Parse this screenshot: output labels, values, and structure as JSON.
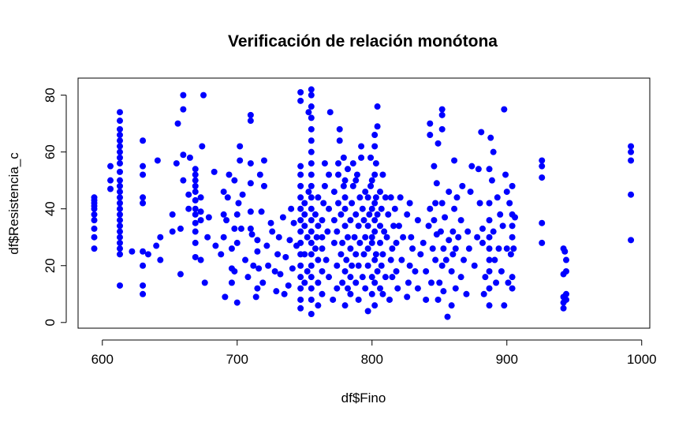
{
  "chart_data": {
    "type": "scatter",
    "title": "Verificación de relación monótona",
    "xlabel": "df$Fino",
    "ylabel": "df$Resistencia_c",
    "xlim": [
      582,
      1006
    ],
    "ylim": [
      -2,
      86
    ],
    "x_ticks": [
      600,
      700,
      800,
      900,
      1000
    ],
    "x_tick_labels": [
      "600",
      "700",
      "800",
      "900",
      "1000"
    ],
    "y_ticks": [
      0,
      20,
      40,
      60,
      80
    ],
    "y_tick_labels": [
      "0",
      "20",
      "40",
      "60",
      "80"
    ],
    "point_color": "#0000ff",
    "grid": false,
    "points": [
      [
        594,
        26
      ],
      [
        594,
        30
      ],
      [
        594,
        33
      ],
      [
        594,
        36
      ],
      [
        594,
        38
      ],
      [
        594,
        40
      ],
      [
        594,
        41
      ],
      [
        594,
        42
      ],
      [
        594,
        43
      ],
      [
        594,
        44
      ],
      [
        606,
        55
      ],
      [
        606,
        50
      ],
      [
        606,
        47
      ],
      [
        613,
        13
      ],
      [
        613,
        24
      ],
      [
        613,
        26
      ],
      [
        613,
        28
      ],
      [
        613,
        30
      ],
      [
        613,
        32
      ],
      [
        613,
        34
      ],
      [
        613,
        36
      ],
      [
        613,
        38
      ],
      [
        613,
        40
      ],
      [
        613,
        42
      ],
      [
        613,
        44
      ],
      [
        613,
        46
      ],
      [
        613,
        48
      ],
      [
        613,
        50
      ],
      [
        613,
        53
      ],
      [
        613,
        56
      ],
      [
        613,
        58
      ],
      [
        613,
        60
      ],
      [
        613,
        62
      ],
      [
        613,
        64
      ],
      [
        613,
        66
      ],
      [
        613,
        68
      ],
      [
        613,
        71
      ],
      [
        613,
        74
      ],
      [
        622,
        25
      ],
      [
        630,
        10
      ],
      [
        630,
        13
      ],
      [
        630,
        20
      ],
      [
        630,
        25
      ],
      [
        630,
        42
      ],
      [
        630,
        44
      ],
      [
        630,
        52
      ],
      [
        630,
        55
      ],
      [
        630,
        64
      ],
      [
        634,
        24
      ],
      [
        640,
        27
      ],
      [
        641,
        57
      ],
      [
        643,
        22
      ],
      [
        643,
        30
      ],
      [
        652,
        32
      ],
      [
        652,
        38
      ],
      [
        655,
        56
      ],
      [
        656,
        70
      ],
      [
        658,
        17
      ],
      [
        658,
        33
      ],
      [
        660,
        50
      ],
      [
        660,
        59
      ],
      [
        660,
        75
      ],
      [
        660,
        80
      ],
      [
        664,
        40
      ],
      [
        664,
        45
      ],
      [
        665,
        58
      ],
      [
        669,
        23
      ],
      [
        669,
        28
      ],
      [
        669,
        32
      ],
      [
        669,
        35
      ],
      [
        669,
        38
      ],
      [
        669,
        40
      ],
      [
        669,
        43
      ],
      [
        669,
        46
      ],
      [
        669,
        48
      ],
      [
        669,
        50
      ],
      [
        669,
        52
      ],
      [
        669,
        54
      ],
      [
        673,
        22
      ],
      [
        673,
        36
      ],
      [
        673,
        39
      ],
      [
        673,
        44
      ],
      [
        674,
        62
      ],
      [
        675,
        80
      ],
      [
        676,
        14
      ],
      [
        678,
        30
      ],
      [
        679,
        37
      ],
      [
        683,
        53
      ],
      [
        684,
        27
      ],
      [
        688,
        24
      ],
      [
        690,
        30
      ],
      [
        690,
        38
      ],
      [
        690,
        46
      ],
      [
        691,
        9
      ],
      [
        692,
        36
      ],
      [
        693,
        44
      ],
      [
        694,
        52
      ],
      [
        696,
        14
      ],
      [
        696,
        19
      ],
      [
        696,
        26
      ],
      [
        698,
        18
      ],
      [
        698,
        33
      ],
      [
        698,
        50
      ],
      [
        700,
        7
      ],
      [
        700,
        28
      ],
      [
        700,
        38
      ],
      [
        701,
        42
      ],
      [
        702,
        57
      ],
      [
        702,
        62
      ],
      [
        703,
        33
      ],
      [
        704,
        45
      ],
      [
        706,
        22
      ],
      [
        708,
        16
      ],
      [
        710,
        33
      ],
      [
        710,
        39
      ],
      [
        710,
        49
      ],
      [
        710,
        56
      ],
      [
        710,
        71
      ],
      [
        710,
        73
      ],
      [
        711,
        31
      ],
      [
        712,
        20
      ],
      [
        714,
        9
      ],
      [
        715,
        12
      ],
      [
        715,
        25
      ],
      [
        715,
        29
      ],
      [
        716,
        19
      ],
      [
        717,
        52
      ],
      [
        718,
        39
      ],
      [
        719,
        14
      ],
      [
        720,
        48
      ],
      [
        720,
        57
      ],
      [
        722,
        27
      ],
      [
        723,
        20
      ],
      [
        725,
        35
      ],
      [
        726,
        32
      ],
      [
        728,
        18
      ],
      [
        729,
        11
      ],
      [
        730,
        24
      ],
      [
        731,
        30
      ],
      [
        732,
        17
      ],
      [
        734,
        37
      ],
      [
        735,
        10
      ],
      [
        736,
        23
      ],
      [
        738,
        13
      ],
      [
        739,
        29
      ],
      [
        740,
        40
      ],
      [
        741,
        19
      ],
      [
        742,
        35
      ],
      [
        744,
        27
      ],
      [
        747,
        5
      ],
      [
        747,
        8
      ],
      [
        747,
        12
      ],
      [
        747,
        16
      ],
      [
        747,
        20
      ],
      [
        747,
        24
      ],
      [
        747,
        28
      ],
      [
        747,
        32
      ],
      [
        747,
        36
      ],
      [
        747,
        40
      ],
      [
        747,
        44
      ],
      [
        747,
        48
      ],
      [
        747,
        52
      ],
      [
        747,
        55
      ],
      [
        747,
        78
      ],
      [
        747,
        81
      ],
      [
        750,
        14
      ],
      [
        750,
        24
      ],
      [
        750,
        34
      ],
      [
        750,
        38
      ],
      [
        750,
        42
      ],
      [
        752,
        18
      ],
      [
        752,
        30
      ],
      [
        753,
        46
      ],
      [
        753,
        74
      ],
      [
        755,
        3
      ],
      [
        755,
        8
      ],
      [
        755,
        12
      ],
      [
        755,
        16
      ],
      [
        755,
        20
      ],
      [
        755,
        24
      ],
      [
        755,
        28
      ],
      [
        755,
        32
      ],
      [
        755,
        36
      ],
      [
        755,
        40
      ],
      [
        755,
        44
      ],
      [
        755,
        48
      ],
      [
        755,
        52
      ],
      [
        755,
        56
      ],
      [
        755,
        60
      ],
      [
        755,
        64
      ],
      [
        755,
        68
      ],
      [
        755,
        72
      ],
      [
        755,
        76
      ],
      [
        755,
        80
      ],
      [
        755,
        82
      ],
      [
        758,
        26
      ],
      [
        758,
        38
      ],
      [
        759,
        30
      ],
      [
        760,
        6
      ],
      [
        760,
        14
      ],
      [
        760,
        22
      ],
      [
        760,
        34
      ],
      [
        760,
        44
      ],
      [
        763,
        10
      ],
      [
        763,
        18
      ],
      [
        763,
        26
      ],
      [
        763,
        30
      ],
      [
        763,
        36
      ],
      [
        764,
        42
      ],
      [
        765,
        48
      ],
      [
        765,
        56
      ],
      [
        766,
        22
      ],
      [
        767,
        32
      ],
      [
        768,
        16
      ],
      [
        768,
        40
      ],
      [
        768,
        52
      ],
      [
        769,
        74
      ],
      [
        771,
        8
      ],
      [
        772,
        28
      ],
      [
        772,
        36
      ],
      [
        772,
        46
      ],
      [
        774,
        12
      ],
      [
        774,
        20
      ],
      [
        774,
        32
      ],
      [
        775,
        42
      ],
      [
        775,
        52
      ],
      [
        775,
        56
      ],
      [
        776,
        64
      ],
      [
        776,
        68
      ],
      [
        777,
        24
      ],
      [
        777,
        38
      ],
      [
        778,
        14
      ],
      [
        778,
        28
      ],
      [
        779,
        48
      ],
      [
        779,
        58
      ],
      [
        780,
        6
      ],
      [
        780,
        18
      ],
      [
        780,
        34
      ],
      [
        780,
        40
      ],
      [
        780,
        44
      ],
      [
        780,
        50
      ],
      [
        781,
        22
      ],
      [
        782,
        12
      ],
      [
        782,
        30
      ],
      [
        782,
        54
      ],
      [
        784,
        10
      ],
      [
        784,
        16
      ],
      [
        784,
        26
      ],
      [
        784,
        36
      ],
      [
        785,
        20
      ],
      [
        785,
        42
      ],
      [
        786,
        48
      ],
      [
        786,
        56
      ],
      [
        787,
        30
      ],
      [
        788,
        14
      ],
      [
        788,
        24
      ],
      [
        788,
        38
      ],
      [
        788,
        50
      ],
      [
        789,
        52
      ],
      [
        790,
        8
      ],
      [
        790,
        20
      ],
      [
        790,
        34
      ],
      [
        791,
        28
      ],
      [
        791,
        44
      ],
      [
        792,
        58
      ],
      [
        792,
        62
      ],
      [
        793,
        16
      ],
      [
        793,
        40
      ],
      [
        794,
        24
      ],
      [
        794,
        36
      ],
      [
        795,
        12
      ],
      [
        795,
        30
      ],
      [
        795,
        46
      ],
      [
        797,
        4
      ],
      [
        797,
        20
      ],
      [
        797,
        26
      ],
      [
        797,
        34
      ],
      [
        797,
        44
      ],
      [
        798,
        38
      ],
      [
        799,
        48
      ],
      [
        799,
        58
      ],
      [
        800,
        10
      ],
      [
        800,
        16
      ],
      [
        800,
        28
      ],
      [
        800,
        30
      ],
      [
        800,
        40
      ],
      [
        800,
        50
      ],
      [
        802,
        6
      ],
      [
        802,
        14
      ],
      [
        802,
        22
      ],
      [
        802,
        32
      ],
      [
        802,
        36
      ],
      [
        802,
        42
      ],
      [
        802,
        52
      ],
      [
        802,
        62
      ],
      [
        802,
        66
      ],
      [
        803,
        24
      ],
      [
        803,
        44
      ],
      [
        803,
        56
      ],
      [
        804,
        18
      ],
      [
        804,
        38
      ],
      [
        804,
        69
      ],
      [
        804,
        76
      ],
      [
        806,
        12
      ],
      [
        806,
        28
      ],
      [
        806,
        34
      ],
      [
        806,
        46
      ],
      [
        807,
        20
      ],
      [
        807,
        40
      ],
      [
        808,
        10
      ],
      [
        808,
        24
      ],
      [
        808,
        52
      ],
      [
        809,
        32
      ],
      [
        810,
        16
      ],
      [
        810,
        44
      ],
      [
        811,
        30
      ],
      [
        812,
        38
      ],
      [
        813,
        8
      ],
      [
        814,
        22
      ],
      [
        814,
        44
      ],
      [
        815,
        16
      ],
      [
        815,
        26
      ],
      [
        816,
        34
      ],
      [
        817,
        40
      ],
      [
        818,
        18
      ],
      [
        818,
        28
      ],
      [
        819,
        12
      ],
      [
        820,
        34
      ],
      [
        821,
        44
      ],
      [
        822,
        22
      ],
      [
        823,
        30
      ],
      [
        826,
        9
      ],
      [
        826,
        38
      ],
      [
        827,
        14
      ],
      [
        828,
        20
      ],
      [
        828,
        42
      ],
      [
        829,
        30
      ],
      [
        830,
        26
      ],
      [
        832,
        18
      ],
      [
        834,
        12
      ],
      [
        834,
        36
      ],
      [
        836,
        24
      ],
      [
        838,
        28
      ],
      [
        840,
        8
      ],
      [
        840,
        18
      ],
      [
        842,
        34
      ],
      [
        843,
        40
      ],
      [
        843,
        66
      ],
      [
        843,
        70
      ],
      [
        844,
        14
      ],
      [
        845,
        26
      ],
      [
        846,
        36
      ],
      [
        846,
        55
      ],
      [
        847,
        22
      ],
      [
        847,
        42
      ],
      [
        848,
        31
      ],
      [
        848,
        49
      ],
      [
        849,
        8
      ],
      [
        849,
        63
      ],
      [
        850,
        14
      ],
      [
        851,
        32
      ],
      [
        852,
        20
      ],
      [
        852,
        42
      ],
      [
        852,
        68
      ],
      [
        852,
        73
      ],
      [
        852,
        75
      ],
      [
        853,
        11
      ],
      [
        853,
        26
      ],
      [
        854,
        37
      ],
      [
        855,
        22
      ],
      [
        856,
        2
      ],
      [
        857,
        29
      ],
      [
        857,
        46
      ],
      [
        859,
        6
      ],
      [
        859,
        18
      ],
      [
        860,
        24
      ],
      [
        860,
        32
      ],
      [
        861,
        40
      ],
      [
        861,
        57
      ],
      [
        862,
        12
      ],
      [
        862,
        26
      ],
      [
        863,
        44
      ],
      [
        864,
        30
      ],
      [
        866,
        16
      ],
      [
        866,
        36
      ],
      [
        867,
        48
      ],
      [
        868,
        22
      ],
      [
        870,
        10
      ],
      [
        871,
        32
      ],
      [
        872,
        26
      ],
      [
        873,
        46
      ],
      [
        874,
        55
      ],
      [
        876,
        20
      ],
      [
        878,
        30
      ],
      [
        879,
        54
      ],
      [
        880,
        42
      ],
      [
        881,
        67
      ],
      [
        882,
        28
      ],
      [
        882,
        33
      ],
      [
        883,
        10
      ],
      [
        884,
        16
      ],
      [
        887,
        6
      ],
      [
        887,
        12
      ],
      [
        887,
        18
      ],
      [
        887,
        22
      ],
      [
        887,
        26
      ],
      [
        887,
        30
      ],
      [
        887,
        36
      ],
      [
        887,
        42
      ],
      [
        887,
        54
      ],
      [
        888,
        65
      ],
      [
        889,
        50
      ],
      [
        890,
        32
      ],
      [
        890,
        60
      ],
      [
        891,
        22
      ],
      [
        892,
        14
      ],
      [
        893,
        44
      ],
      [
        894,
        26
      ],
      [
        895,
        38
      ],
      [
        896,
        18
      ],
      [
        897,
        34
      ],
      [
        898,
        6
      ],
      [
        898,
        75
      ],
      [
        899,
        52
      ],
      [
        900,
        26
      ],
      [
        900,
        46
      ],
      [
        901,
        14
      ],
      [
        902,
        42
      ],
      [
        903,
        24
      ],
      [
        904,
        12
      ],
      [
        904,
        16
      ],
      [
        904,
        30
      ],
      [
        904,
        34
      ],
      [
        904,
        38
      ],
      [
        904,
        48
      ],
      [
        905,
        26
      ],
      [
        906,
        37
      ],
      [
        926,
        28
      ],
      [
        926,
        35
      ],
      [
        926,
        51
      ],
      [
        926,
        55
      ],
      [
        926,
        57
      ],
      [
        942,
        5
      ],
      [
        942,
        7
      ],
      [
        942,
        9
      ],
      [
        942,
        17
      ],
      [
        942,
        26
      ],
      [
        943,
        25
      ],
      [
        944,
        8
      ],
      [
        944,
        10
      ],
      [
        944,
        18
      ],
      [
        944,
        22
      ],
      [
        992,
        29
      ],
      [
        992,
        45
      ],
      [
        992,
        57
      ],
      [
        992,
        60
      ],
      [
        992,
        62
      ]
    ]
  }
}
